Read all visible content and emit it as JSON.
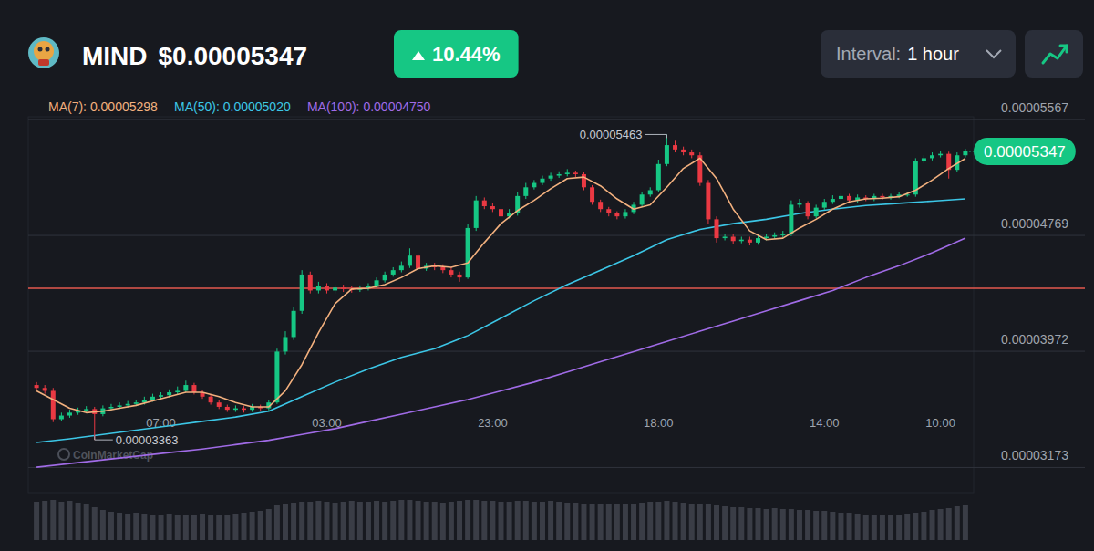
{
  "header": {
    "symbol": "MIND",
    "price": "$0.00005347",
    "change": "10.44%",
    "interval_label": "Interval:",
    "interval": "1 hour"
  },
  "chart_data": {
    "type": "candlestick",
    "legend": "top-left",
    "grid": true,
    "xlim": [
      -1,
      113
    ],
    "xticks": [
      {
        "value": 15,
        "label": "07:00"
      },
      {
        "value": 35,
        "label": "03:00"
      },
      {
        "value": 55,
        "label": "23:00"
      },
      {
        "value": 75,
        "label": "18:00"
      },
      {
        "value": 95,
        "label": "14:00"
      },
      {
        "value": 109,
        "label": "10:00"
      }
    ],
    "ylim": [
      3e-05,
      5.585e-05
    ],
    "yticks": [
      {
        "value": 3.173e-05,
        "label": "0.00003173"
      },
      {
        "value": 3.972e-05,
        "label": "0.00003972"
      },
      {
        "value": 4.769e-05,
        "label": "0.00004769"
      },
      {
        "value": 5.567e-05,
        "label": "0.00005567"
      }
    ],
    "series": [
      {
        "type": "candlestick",
        "x": [
          0,
          1,
          2,
          3,
          4,
          5,
          6,
          7,
          8,
          9,
          10,
          11,
          12,
          13,
          14,
          15,
          16,
          17,
          18,
          19,
          20,
          21,
          22,
          23,
          24,
          25,
          26,
          27,
          28,
          29,
          30,
          31,
          32,
          33,
          34,
          35,
          36,
          37,
          38,
          39,
          40,
          41,
          42,
          43,
          44,
          45,
          46,
          47,
          48,
          49,
          50,
          51,
          52,
          53,
          54,
          55,
          56,
          57,
          58,
          59,
          60,
          61,
          62,
          63,
          64,
          65,
          66,
          67,
          68,
          69,
          70,
          71,
          72,
          73,
          74,
          75,
          76,
          77,
          78,
          79,
          80,
          81,
          82,
          83,
          84,
          85,
          86,
          87,
          88,
          89,
          90,
          91,
          92,
          93,
          94,
          95,
          96,
          97,
          98,
          99,
          100,
          101,
          102,
          103,
          104,
          105,
          106,
          107,
          108,
          109,
          110,
          111,
          112
        ],
        "open": [
          3.74e-05,
          3.72e-05,
          3.7e-05,
          3.505e-05,
          3.53e-05,
          3.55e-05,
          3.565e-05,
          3.575e-05,
          3.54e-05,
          3.58e-05,
          3.59e-05,
          3.6e-05,
          3.61e-05,
          3.62e-05,
          3.64e-05,
          3.66e-05,
          3.67e-05,
          3.69e-05,
          3.7e-05,
          3.74e-05,
          3.69e-05,
          3.66e-05,
          3.62e-05,
          3.59e-05,
          3.57e-05,
          3.58e-05,
          3.57e-05,
          3.59e-05,
          3.58e-05,
          3.62e-05,
          3.97e-05,
          4.07e-05,
          4.25e-05,
          4.5e-05,
          4.39e-05,
          4.42e-05,
          4.39e-05,
          4.41e-05,
          4.4e-05,
          4.395e-05,
          4.405e-05,
          4.42e-05,
          4.46e-05,
          4.5e-05,
          4.53e-05,
          4.56e-05,
          4.63e-05,
          4.54e-05,
          4.56e-05,
          4.55e-05,
          4.53e-05,
          4.5e-05,
          4.48e-05,
          4.82e-05,
          5.01e-05,
          4.97e-05,
          4.95e-05,
          4.9e-05,
          4.92e-05,
          5.04e-05,
          5.1e-05,
          5.13e-05,
          5.16e-05,
          5.18e-05,
          5.19e-05,
          5.2e-05,
          5.19e-05,
          5.1e-05,
          5e-05,
          4.95e-05,
          4.92e-05,
          4.9e-05,
          4.93e-05,
          4.98e-05,
          5.05e-05,
          5.08e-05,
          5.26e-05,
          5.39e-05,
          5.36e-05,
          5.34e-05,
          5.32e-05,
          5.13e-05,
          4.88e-05,
          4.75e-05,
          4.76e-05,
          4.73e-05,
          4.74e-05,
          4.72e-05,
          4.75e-05,
          4.76e-05,
          4.77e-05,
          4.78e-05,
          4.98e-05,
          4.99e-05,
          4.9e-05,
          4.96e-05,
          5e-05,
          5.02e-05,
          5.04e-05,
          5.01e-05,
          5.03e-05,
          5.02e-05,
          5.04e-05,
          5.03e-05,
          5.04e-05,
          5.05e-05,
          5.05e-05,
          5.28e-05,
          5.3e-05,
          5.32e-05,
          5.33e-05,
          5.22e-05,
          5.32e-05
        ],
        "high": [
          3.76e-05,
          3.74e-05,
          3.72e-05,
          3.55e-05,
          3.57e-05,
          3.585e-05,
          3.595e-05,
          3.59e-05,
          3.6e-05,
          3.61e-05,
          3.62e-05,
          3.63e-05,
          3.64e-05,
          3.66e-05,
          3.68e-05,
          3.69e-05,
          3.71e-05,
          3.73e-05,
          3.77e-05,
          3.755e-05,
          3.705e-05,
          3.675e-05,
          3.635e-05,
          3.605e-05,
          3.6e-05,
          3.595e-05,
          3.61e-05,
          3.605e-05,
          3.64e-05,
          3.99e-05,
          4.11e-05,
          4.28e-05,
          4.53e-05,
          4.52e-05,
          4.45e-05,
          4.44e-05,
          4.43e-05,
          4.43e-05,
          4.42e-05,
          4.425e-05,
          4.44e-05,
          4.48e-05,
          4.52e-05,
          4.55e-05,
          4.59e-05,
          4.68e-05,
          4.645e-05,
          4.58e-05,
          4.58e-05,
          4.57e-05,
          4.55e-05,
          4.52e-05,
          4.85e-05,
          5.04e-05,
          5.03e-05,
          4.99e-05,
          4.97e-05,
          4.95e-05,
          5.07e-05,
          5.13e-05,
          5.15e-05,
          5.18e-05,
          5.2e-05,
          5.21e-05,
          5.225e-05,
          5.215e-05,
          5.205e-05,
          5.115e-05,
          5.015e-05,
          4.965e-05,
          4.935e-05,
          4.95e-05,
          5e-05,
          5.07e-05,
          5.1e-05,
          5.29e-05,
          5.463e-05,
          5.42e-05,
          5.38e-05,
          5.36e-05,
          5.34e-05,
          5.15e-05,
          4.9e-05,
          4.78e-05,
          4.78e-05,
          4.76e-05,
          4.76e-05,
          4.77e-05,
          4.78e-05,
          4.79e-05,
          4.8e-05,
          5.01e-05,
          5.02e-05,
          5.005e-05,
          4.98e-05,
          5.02e-05,
          5.045e-05,
          5.06e-05,
          5.055e-05,
          5.05e-05,
          5.045e-05,
          5.055e-05,
          5.055e-05,
          5.055e-05,
          5.065e-05,
          5.065e-05,
          5.3e-05,
          5.32e-05,
          5.34e-05,
          5.35e-05,
          5.345e-05,
          5.34e-05,
          5.365e-05
        ],
        "low": [
          3.7e-05,
          3.68e-05,
          3.485e-05,
          3.49e-05,
          3.515e-05,
          3.535e-05,
          3.55e-05,
          3.363e-05,
          3.525e-05,
          3.565e-05,
          3.575e-05,
          3.585e-05,
          3.595e-05,
          3.605e-05,
          3.625e-05,
          3.645e-05,
          3.655e-05,
          3.675e-05,
          3.69e-05,
          3.675e-05,
          3.645e-05,
          3.605e-05,
          3.575e-05,
          3.555e-05,
          3.555e-05,
          3.55e-05,
          3.555e-05,
          3.56e-05,
          3.565e-05,
          3.61e-05,
          3.95e-05,
          4.05e-05,
          4.23e-05,
          4.37e-05,
          4.37e-05,
          4.37e-05,
          4.37e-05,
          4.38e-05,
          4.375e-05,
          4.38e-05,
          4.39e-05,
          4.405e-05,
          4.445e-05,
          4.485e-05,
          4.515e-05,
          4.545e-05,
          4.52e-05,
          4.525e-05,
          4.53e-05,
          4.51e-05,
          4.48e-05,
          4.45e-05,
          4.47e-05,
          4.8e-05,
          4.95e-05,
          4.93e-05,
          4.88e-05,
          4.885e-05,
          4.905e-05,
          5.02e-05,
          5.085e-05,
          5.115e-05,
          5.145e-05,
          5.165e-05,
          5.175e-05,
          5.17e-05,
          5.08e-05,
          4.98e-05,
          4.93e-05,
          4.9e-05,
          4.88e-05,
          4.885e-05,
          4.915e-05,
          4.965e-05,
          5.035e-05,
          5.065e-05,
          5.245e-05,
          5.34e-05,
          5.32e-05,
          5.3e-05,
          5.11e-05,
          4.85e-05,
          4.72e-05,
          4.735e-05,
          4.71e-05,
          4.715e-05,
          4.7e-05,
          4.705e-05,
          4.735e-05,
          4.745e-05,
          4.755e-05,
          4.765e-05,
          4.96e-05,
          4.88e-05,
          4.885e-05,
          4.945e-05,
          4.985e-05,
          5.005e-05,
          4.995e-05,
          4.995e-05,
          5.005e-05,
          5.005e-05,
          5.015e-05,
          5.015e-05,
          5.025e-05,
          5.035e-05,
          5.035e-05,
          5.265e-05,
          5.285e-05,
          5.305e-05,
          5.16e-05,
          5.205e-05,
          5.305e-05
        ],
        "close": [
          3.72e-05,
          3.7e-05,
          3.505e-05,
          3.53e-05,
          3.55e-05,
          3.565e-05,
          3.575e-05,
          3.54e-05,
          3.58e-05,
          3.59e-05,
          3.6e-05,
          3.61e-05,
          3.62e-05,
          3.64e-05,
          3.66e-05,
          3.67e-05,
          3.69e-05,
          3.7e-05,
          3.74e-05,
          3.69e-05,
          3.66e-05,
          3.62e-05,
          3.59e-05,
          3.57e-05,
          3.58e-05,
          3.57e-05,
          3.59e-05,
          3.58e-05,
          3.62e-05,
          3.97e-05,
          4.07e-05,
          4.25e-05,
          4.5e-05,
          4.39e-05,
          4.42e-05,
          4.39e-05,
          4.41e-05,
          4.4e-05,
          4.395e-05,
          4.405e-05,
          4.42e-05,
          4.46e-05,
          4.5e-05,
          4.53e-05,
          4.56e-05,
          4.63e-05,
          4.54e-05,
          4.56e-05,
          4.55e-05,
          4.53e-05,
          4.5e-05,
          4.48e-05,
          4.82e-05,
          5.01e-05,
          4.97e-05,
          4.95e-05,
          4.9e-05,
          4.92e-05,
          5.04e-05,
          5.1e-05,
          5.13e-05,
          5.16e-05,
          5.18e-05,
          5.19e-05,
          5.2e-05,
          5.19e-05,
          5.1e-05,
          5e-05,
          4.95e-05,
          4.92e-05,
          4.9e-05,
          4.93e-05,
          4.98e-05,
          5.05e-05,
          5.08e-05,
          5.26e-05,
          5.39e-05,
          5.36e-05,
          5.34e-05,
          5.32e-05,
          5.13e-05,
          4.88e-05,
          4.75e-05,
          4.76e-05,
          4.73e-05,
          4.74e-05,
          4.72e-05,
          4.75e-05,
          4.76e-05,
          4.77e-05,
          4.78e-05,
          4.98e-05,
          4.99e-05,
          4.9e-05,
          4.96e-05,
          5e-05,
          5.02e-05,
          5.04e-05,
          5.01e-05,
          5.03e-05,
          5.02e-05,
          5.04e-05,
          5.03e-05,
          5.04e-05,
          5.05e-05,
          5.05e-05,
          5.28e-05,
          5.3e-05,
          5.32e-05,
          5.33e-05,
          5.22e-05,
          5.32e-05,
          5.347e-05
        ]
      },
      {
        "type": "line",
        "name": "MA(7): 0.00005298",
        "color": "#f2b07e",
        "x": [
          0,
          2,
          4,
          6,
          8,
          10,
          12,
          14,
          16,
          18,
          20,
          22,
          24,
          26,
          28,
          30,
          32,
          34,
          36,
          38,
          40,
          42,
          44,
          46,
          48,
          50,
          52,
          54,
          56,
          58,
          60,
          62,
          64,
          66,
          68,
          70,
          72,
          74,
          76,
          78,
          80,
          82,
          84,
          86,
          88,
          90,
          92,
          94,
          96,
          98,
          100,
          102,
          104,
          106,
          108,
          110,
          112
        ],
        "values": [
          3.7e-05,
          3.64e-05,
          3.58e-05,
          3.55e-05,
          3.56e-05,
          3.58e-05,
          3.6e-05,
          3.63e-05,
          3.66e-05,
          3.69e-05,
          3.69e-05,
          3.66e-05,
          3.62e-05,
          3.59e-05,
          3.59e-05,
          3.7e-05,
          3.88e-05,
          4.1e-05,
          4.3e-05,
          4.4e-05,
          4.405e-05,
          4.43e-05,
          4.48e-05,
          4.54e-05,
          4.56e-05,
          4.55e-05,
          4.58e-05,
          4.72e-05,
          4.85e-05,
          4.94e-05,
          5.01e-05,
          5.09e-05,
          5.16e-05,
          5.17e-05,
          5.11e-05,
          5.02e-05,
          4.95e-05,
          4.98e-05,
          5.1e-05,
          5.23e-05,
          5.3e-05,
          5.16e-05,
          4.95e-05,
          4.8e-05,
          4.74e-05,
          4.75e-05,
          4.82e-05,
          4.88e-05,
          4.95e-05,
          5e-05,
          5.02e-05,
          5.025e-05,
          5.035e-05,
          5.08e-05,
          5.15e-05,
          5.23e-05,
          5.298e-05
        ]
      },
      {
        "type": "line",
        "name": "MA(50): 0.00005020",
        "color": "#3cc6e6",
        "x": [
          0,
          4,
          8,
          12,
          16,
          20,
          24,
          28,
          32,
          36,
          40,
          44,
          48,
          52,
          56,
          60,
          64,
          68,
          72,
          76,
          80,
          84,
          88,
          92,
          96,
          100,
          104,
          108,
          112
        ],
        "values": [
          3.345e-05,
          3.37e-05,
          3.4e-05,
          3.43e-05,
          3.46e-05,
          3.49e-05,
          3.52e-05,
          3.56e-05,
          3.66e-05,
          3.76e-05,
          3.85e-05,
          3.93e-05,
          3.99e-05,
          4.08e-05,
          4.2e-05,
          4.32e-05,
          4.43e-05,
          4.53e-05,
          4.63e-05,
          4.74e-05,
          4.81e-05,
          4.85e-05,
          4.88e-05,
          4.92e-05,
          4.95e-05,
          4.975e-05,
          4.99e-05,
          5.005e-05,
          5.02e-05
        ]
      },
      {
        "type": "line",
        "name": "MA(100): 0.00004750",
        "color": "#a06be6",
        "x": [
          0,
          4,
          8,
          12,
          16,
          20,
          24,
          28,
          32,
          36,
          40,
          44,
          48,
          52,
          56,
          60,
          64,
          68,
          72,
          76,
          80,
          84,
          88,
          92,
          96,
          100,
          104,
          108,
          112
        ],
        "values": [
          3.175e-05,
          3.2e-05,
          3.225e-05,
          3.25e-05,
          3.275e-05,
          3.3e-05,
          3.33e-05,
          3.36e-05,
          3.4e-05,
          3.44e-05,
          3.49e-05,
          3.54e-05,
          3.59e-05,
          3.64e-05,
          3.7e-05,
          3.76e-05,
          3.83e-05,
          3.9e-05,
          3.97e-05,
          4.04e-05,
          4.11e-05,
          4.18e-05,
          4.25e-05,
          4.32e-05,
          4.39e-05,
          4.48e-05,
          4.56e-05,
          4.65e-05,
          4.75e-05
        ]
      }
    ],
    "volume": {
      "values": [
        42,
        43,
        44,
        42,
        43,
        41,
        40,
        36,
        33,
        31,
        30,
        29,
        30,
        29,
        28,
        28,
        29,
        28,
        27,
        28,
        29,
        28,
        27,
        28,
        29,
        30,
        31,
        32,
        34,
        38,
        40,
        41,
        42,
        42,
        43,
        42,
        41,
        42,
        43,
        42,
        42,
        43,
        42,
        43,
        44,
        44,
        43,
        42,
        42,
        41,
        42,
        43,
        44,
        44,
        43,
        43,
        42,
        42,
        43,
        43,
        42,
        42,
        43,
        42,
        41,
        41,
        40,
        40,
        39,
        40,
        40,
        39,
        40,
        41,
        42,
        42,
        43,
        42,
        41,
        40,
        40,
        39,
        38,
        37,
        36,
        36,
        35,
        35,
        34,
        35,
        34,
        34,
        33,
        33,
        32,
        32,
        31,
        30,
        30,
        29,
        28,
        28,
        27,
        27,
        28,
        29,
        30,
        31,
        33,
        34,
        35,
        37,
        38
      ],
      "ylim": [
        0,
        50
      ]
    },
    "reference_lines": [
      {
        "value": 4.405e-05,
        "color": "#e5594f"
      }
    ],
    "annotations": [
      {
        "text": "0.00005463",
        "x": 76,
        "y": 5.463e-05
      },
      {
        "text": "0.00003363",
        "x": 7,
        "y": 3.363e-05
      }
    ],
    "last_price": {
      "value": 5.347e-05,
      "label": "0.00005347"
    },
    "watermark": "CoinMarketCap"
  }
}
